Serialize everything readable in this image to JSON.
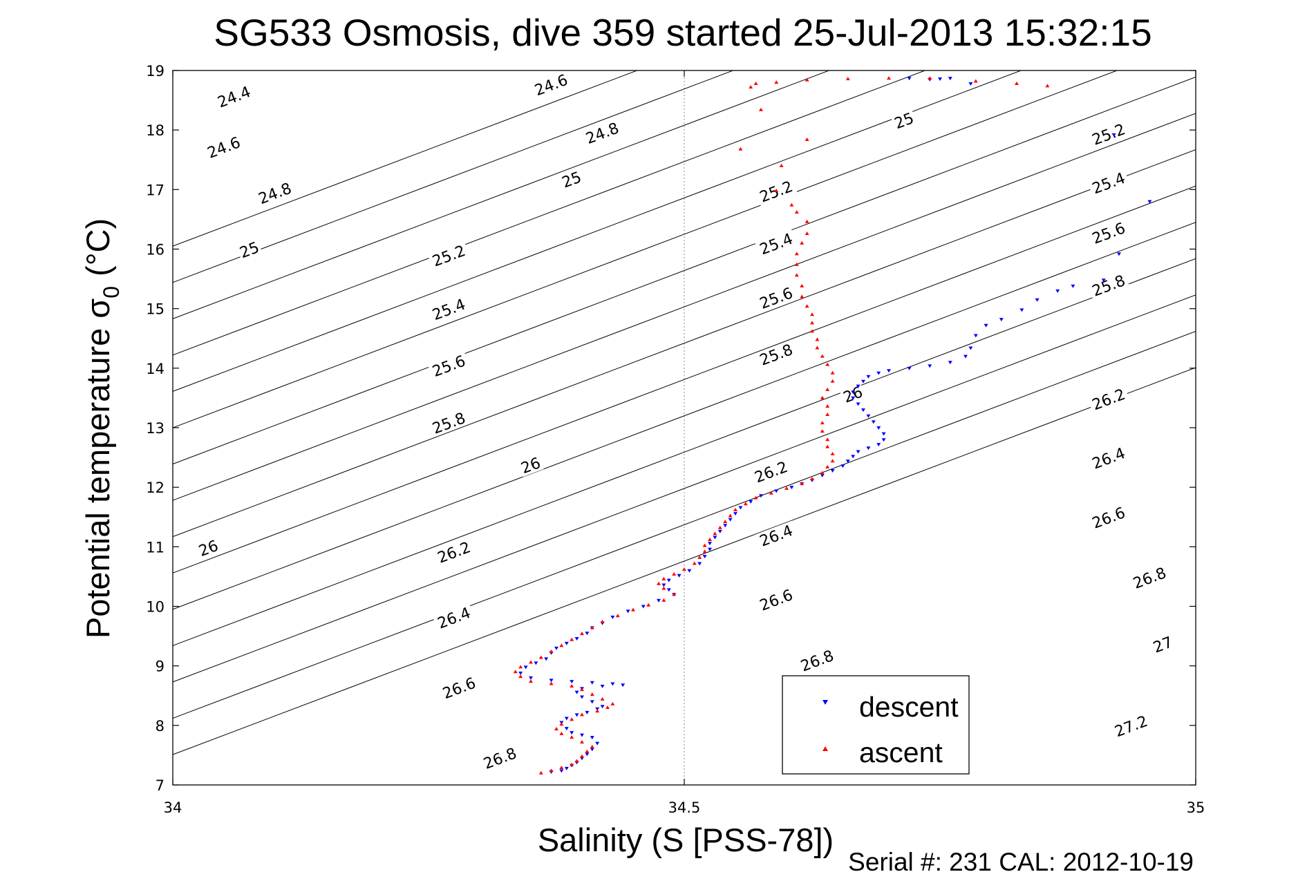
{
  "chart_data": {
    "type": "scatter",
    "title": "SG533 Osmosis, dive 359 started 25-Jul-2013 15:32:15",
    "xlabel": "Salinity (S [PSS-78])",
    "ylabel": "Potential temperature",
    "ylabel_sigma": "σ",
    "ylabel_sub": "0",
    "ylabel_unit": "(°C)",
    "xlim": [
      34,
      35
    ],
    "ylim": [
      7,
      19
    ],
    "x_ticks": [
      {
        "value": 34,
        "label": "34"
      },
      {
        "value": 34.5,
        "label": "34.5"
      },
      {
        "value": 35,
        "label": "35"
      }
    ],
    "y_ticks": [
      {
        "value": 7,
        "label": "7"
      },
      {
        "value": 8,
        "label": "8"
      },
      {
        "value": 9,
        "label": "9"
      },
      {
        "value": 10,
        "label": "10"
      },
      {
        "value": 11,
        "label": "11"
      },
      {
        "value": 12,
        "label": "12"
      },
      {
        "value": 13,
        "label": "13"
      },
      {
        "value": 14,
        "label": "14"
      },
      {
        "value": 15,
        "label": "15"
      },
      {
        "value": 16,
        "label": "16"
      },
      {
        "value": 17,
        "label": "17"
      },
      {
        "value": 18,
        "label": "18"
      },
      {
        "value": 19,
        "label": "19"
      }
    ],
    "grid": "x=34.5 only (dotted)",
    "density_contours": {
      "levels": [
        24.4,
        24.6,
        24.8,
        25,
        25.2,
        25.4,
        25.6,
        25.8,
        26,
        26.2,
        26.4,
        26.6,
        26.8,
        27,
        27.2
      ],
      "labels": [
        {
          "text": "24.4",
          "s": 34.06,
          "t": 18.55
        },
        {
          "text": "24.6",
          "s": 34.05,
          "t": 17.7
        },
        {
          "text": "24.8",
          "s": 34.1,
          "t": 16.93
        },
        {
          "text": "25",
          "s": 34.075,
          "t": 15.98
        },
        {
          "text": "24.6",
          "s": 34.37,
          "t": 18.75
        },
        {
          "text": "24.8",
          "s": 34.42,
          "t": 17.94
        },
        {
          "text": "25",
          "s": 34.39,
          "t": 17.16
        },
        {
          "text": "25.2",
          "s": 34.27,
          "t": 15.88
        },
        {
          "text": "25.4",
          "s": 34.27,
          "t": 14.98
        },
        {
          "text": "25.6",
          "s": 34.27,
          "t": 14.03
        },
        {
          "text": "25.8",
          "s": 34.27,
          "t": 13.07
        },
        {
          "text": "26",
          "s": 34.35,
          "t": 12.36
        },
        {
          "text": "26",
          "s": 34.035,
          "t": 10.97
        },
        {
          "text": "26.2",
          "s": 34.275,
          "t": 10.9
        },
        {
          "text": "26.4",
          "s": 34.275,
          "t": 9.8
        },
        {
          "text": "26.6",
          "s": 34.28,
          "t": 8.62
        },
        {
          "text": "26.8",
          "s": 34.32,
          "t": 7.44
        },
        {
          "text": "25",
          "s": 34.715,
          "t": 18.15
        },
        {
          "text": "25.2",
          "s": 34.59,
          "t": 16.96
        },
        {
          "text": "25.4",
          "s": 34.59,
          "t": 16.08
        },
        {
          "text": "25.6",
          "s": 34.59,
          "t": 15.17
        },
        {
          "text": "25.8",
          "s": 34.59,
          "t": 14.22
        },
        {
          "text": "26",
          "s": 34.665,
          "t": 13.55
        },
        {
          "text": "26.2",
          "s": 34.585,
          "t": 12.25
        },
        {
          "text": "26.4",
          "s": 34.59,
          "t": 11.18
        },
        {
          "text": "26.6",
          "s": 34.59,
          "t": 10.1
        },
        {
          "text": "26.8",
          "s": 34.63,
          "t": 9.08
        },
        {
          "text": "25.2",
          "s": 34.915,
          "t": 17.92
        },
        {
          "text": "25.4",
          "s": 34.915,
          "t": 17.1
        },
        {
          "text": "25.6",
          "s": 34.915,
          "t": 16.26
        },
        {
          "text": "25.8",
          "s": 34.915,
          "t": 15.38
        },
        {
          "text": "26.2",
          "s": 34.915,
          "t": 13.47
        },
        {
          "text": "26.4",
          "s": 34.915,
          "t": 12.48
        },
        {
          "text": "26.6",
          "s": 34.915,
          "t": 11.48
        },
        {
          "text": "26.8",
          "s": 34.955,
          "t": 10.47
        },
        {
          "text": "27",
          "s": 34.968,
          "t": 9.35
        },
        {
          "text": "27.2",
          "s": 34.937,
          "t": 7.98
        }
      ]
    },
    "series": [
      {
        "name": "descent",
        "color": "#0000ff",
        "marker": "triangle-down",
        "points": [
          [
            34.37,
            7.22
          ],
          [
            34.38,
            7.24
          ],
          [
            34.385,
            7.28
          ],
          [
            34.39,
            7.33
          ],
          [
            34.395,
            7.38
          ],
          [
            34.4,
            7.45
          ],
          [
            34.405,
            7.52
          ],
          [
            34.41,
            7.6
          ],
          [
            34.415,
            7.7
          ],
          [
            34.41,
            7.8
          ],
          [
            34.4,
            7.84
          ],
          [
            34.39,
            7.88
          ],
          [
            34.385,
            7.95
          ],
          [
            34.38,
            8.05
          ],
          [
            34.385,
            8.12
          ],
          [
            34.395,
            8.18
          ],
          [
            34.405,
            8.22
          ],
          [
            34.415,
            8.28
          ],
          [
            34.42,
            8.32
          ],
          [
            34.41,
            8.4
          ],
          [
            34.4,
            8.48
          ],
          [
            34.395,
            8.56
          ],
          [
            34.4,
            8.62
          ],
          [
            34.42,
            8.66
          ],
          [
            34.44,
            8.68
          ],
          [
            34.43,
            8.7
          ],
          [
            34.41,
            8.72
          ],
          [
            34.39,
            8.74
          ],
          [
            34.37,
            8.76
          ],
          [
            34.35,
            8.8
          ],
          [
            34.34,
            8.88
          ],
          [
            34.345,
            8.98
          ],
          [
            34.355,
            9.05
          ],
          [
            34.365,
            9.12
          ],
          [
            34.37,
            9.22
          ],
          [
            34.375,
            9.3
          ],
          [
            34.385,
            9.38
          ],
          [
            34.395,
            9.46
          ],
          [
            34.405,
            9.55
          ],
          [
            34.41,
            9.64
          ],
          [
            34.42,
            9.72
          ],
          [
            34.43,
            9.82
          ],
          [
            34.445,
            9.92
          ],
          [
            34.46,
            10.0
          ],
          [
            34.475,
            10.1
          ],
          [
            34.49,
            10.2
          ],
          [
            34.485,
            10.28
          ],
          [
            34.48,
            10.36
          ],
          [
            34.485,
            10.44
          ],
          [
            34.495,
            10.52
          ],
          [
            34.505,
            10.6
          ],
          [
            34.515,
            10.72
          ],
          [
            34.52,
            10.84
          ],
          [
            34.525,
            10.96
          ],
          [
            34.525,
            11.06
          ],
          [
            34.53,
            11.16
          ],
          [
            34.535,
            11.26
          ],
          [
            34.54,
            11.36
          ],
          [
            34.545,
            11.46
          ],
          [
            34.55,
            11.56
          ],
          [
            34.555,
            11.66
          ],
          [
            34.565,
            11.76
          ],
          [
            34.575,
            11.86
          ],
          [
            34.59,
            11.94
          ],
          [
            34.605,
            12.0
          ],
          [
            34.615,
            12.06
          ],
          [
            34.625,
            12.12
          ],
          [
            34.635,
            12.2
          ],
          [
            34.645,
            12.28
          ],
          [
            34.655,
            12.36
          ],
          [
            34.66,
            12.44
          ],
          [
            34.665,
            12.52
          ],
          [
            34.67,
            12.6
          ],
          [
            34.68,
            12.66
          ],
          [
            34.69,
            12.72
          ],
          [
            34.695,
            12.8
          ],
          [
            34.695,
            12.9
          ],
          [
            34.69,
            13.0
          ],
          [
            34.685,
            13.1
          ],
          [
            34.68,
            13.2
          ],
          [
            34.675,
            13.3
          ],
          [
            34.67,
            13.4
          ],
          [
            34.665,
            13.5
          ],
          [
            34.665,
            13.6
          ],
          [
            34.67,
            13.7
          ],
          [
            34.675,
            13.78
          ],
          [
            34.68,
            13.86
          ],
          [
            34.69,
            13.92
          ],
          [
            34.7,
            13.96
          ],
          [
            34.72,
            14.0
          ],
          [
            34.74,
            14.04
          ],
          [
            34.76,
            14.1
          ],
          [
            34.775,
            14.2
          ],
          [
            34.78,
            14.34
          ],
          [
            34.785,
            14.55
          ],
          [
            34.795,
            14.72
          ],
          [
            34.81,
            14.82
          ],
          [
            34.83,
            14.98
          ],
          [
            34.845,
            15.15
          ],
          [
            34.865,
            15.3
          ],
          [
            34.88,
            15.38
          ],
          [
            34.91,
            15.48
          ],
          [
            34.925,
            15.92
          ],
          [
            34.955,
            16.8
          ],
          [
            34.92,
            17.92
          ],
          [
            34.78,
            18.78
          ],
          [
            34.74,
            18.85
          ],
          [
            34.75,
            18.86
          ],
          [
            34.76,
            18.87
          ],
          [
            34.72,
            18.87
          ]
        ]
      },
      {
        "name": "ascent",
        "color": "#ff0000",
        "marker": "triangle-up",
        "points": [
          [
            34.36,
            7.2
          ],
          [
            34.37,
            7.24
          ],
          [
            34.38,
            7.29
          ],
          [
            34.39,
            7.34
          ],
          [
            34.395,
            7.4
          ],
          [
            34.4,
            7.48
          ],
          [
            34.405,
            7.56
          ],
          [
            34.41,
            7.64
          ],
          [
            34.4,
            7.72
          ],
          [
            34.39,
            7.8
          ],
          [
            34.38,
            7.86
          ],
          [
            34.375,
            7.94
          ],
          [
            34.38,
            8.02
          ],
          [
            34.39,
            8.1
          ],
          [
            34.4,
            8.18
          ],
          [
            34.415,
            8.24
          ],
          [
            34.425,
            8.3
          ],
          [
            34.43,
            8.36
          ],
          [
            34.42,
            8.44
          ],
          [
            34.41,
            8.52
          ],
          [
            34.4,
            8.6
          ],
          [
            34.39,
            8.66
          ],
          [
            34.37,
            8.7
          ],
          [
            34.35,
            8.74
          ],
          [
            34.34,
            8.82
          ],
          [
            34.335,
            8.9
          ],
          [
            34.34,
            8.98
          ],
          [
            34.35,
            9.06
          ],
          [
            34.36,
            9.14
          ],
          [
            34.37,
            9.24
          ],
          [
            34.38,
            9.34
          ],
          [
            34.39,
            9.44
          ],
          [
            34.4,
            9.54
          ],
          [
            34.41,
            9.64
          ],
          [
            34.42,
            9.74
          ],
          [
            34.435,
            9.84
          ],
          [
            34.45,
            9.94
          ],
          [
            34.465,
            10.02
          ],
          [
            34.48,
            10.1
          ],
          [
            34.49,
            10.2
          ],
          [
            34.48,
            10.3
          ],
          [
            34.475,
            10.38
          ],
          [
            34.48,
            10.46
          ],
          [
            34.49,
            10.54
          ],
          [
            34.5,
            10.62
          ],
          [
            34.51,
            10.72
          ],
          [
            34.515,
            10.82
          ],
          [
            34.52,
            10.92
          ],
          [
            34.52,
            11.02
          ],
          [
            34.525,
            11.12
          ],
          [
            34.53,
            11.22
          ],
          [
            34.535,
            11.32
          ],
          [
            34.54,
            11.42
          ],
          [
            34.545,
            11.52
          ],
          [
            34.55,
            11.62
          ],
          [
            34.56,
            11.72
          ],
          [
            34.57,
            11.82
          ],
          [
            34.585,
            11.9
          ],
          [
            34.6,
            11.98
          ],
          [
            34.615,
            12.06
          ],
          [
            34.625,
            12.14
          ],
          [
            34.635,
            12.24
          ],
          [
            34.64,
            12.34
          ],
          [
            34.645,
            12.44
          ],
          [
            34.645,
            12.56
          ],
          [
            34.64,
            12.68
          ],
          [
            34.64,
            12.8
          ],
          [
            34.635,
            12.94
          ],
          [
            34.635,
            13.08
          ],
          [
            34.64,
            13.22
          ],
          [
            34.64,
            13.36
          ],
          [
            34.635,
            13.5
          ],
          [
            34.64,
            13.64
          ],
          [
            34.645,
            13.78
          ],
          [
            34.645,
            13.92
          ],
          [
            34.64,
            14.06
          ],
          [
            34.635,
            14.2
          ],
          [
            34.63,
            14.34
          ],
          [
            34.63,
            14.48
          ],
          [
            34.625,
            14.62
          ],
          [
            34.625,
            14.76
          ],
          [
            34.625,
            14.9
          ],
          [
            34.62,
            15.04
          ],
          [
            34.615,
            15.2
          ],
          [
            34.615,
            15.38
          ],
          [
            34.61,
            15.56
          ],
          [
            34.61,
            15.74
          ],
          [
            34.61,
            15.92
          ],
          [
            34.615,
            16.1
          ],
          [
            34.62,
            16.26
          ],
          [
            34.62,
            16.46
          ],
          [
            34.61,
            16.62
          ],
          [
            34.605,
            16.74
          ],
          [
            34.59,
            16.98
          ],
          [
            34.595,
            17.4
          ],
          [
            34.62,
            17.84
          ],
          [
            34.575,
            18.34
          ],
          [
            34.555,
            17.68
          ],
          [
            34.565,
            18.72
          ],
          [
            34.59,
            18.8
          ],
          [
            34.62,
            18.84
          ],
          [
            34.66,
            18.86
          ],
          [
            34.7,
            18.87
          ],
          [
            34.74,
            18.87
          ],
          [
            34.785,
            18.82
          ],
          [
            34.825,
            18.78
          ],
          [
            34.855,
            18.74
          ],
          [
            34.57,
            18.78
          ]
        ]
      }
    ],
    "legend": {
      "position": "lower-right",
      "entries": [
        "descent",
        "ascent"
      ]
    },
    "footer": "Serial #: 231  CAL: 2012-10-19"
  }
}
